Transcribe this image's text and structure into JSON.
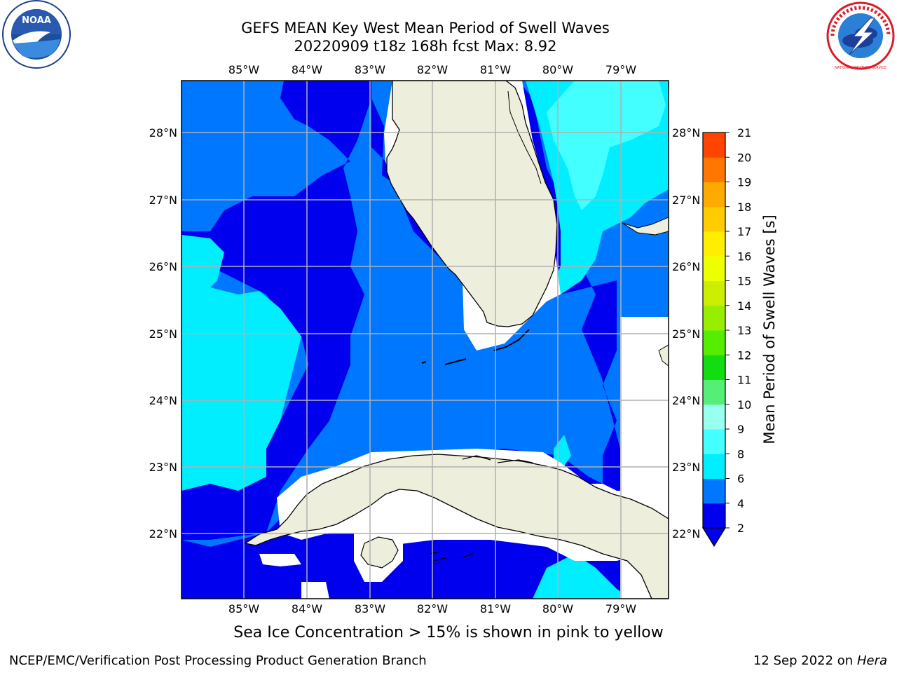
{
  "header": {
    "title_line1": "GEFS MEAN Key West Mean Period of Swell Waves",
    "title_line2": "20220909 t18z 168h fcst   Max: 8.92"
  },
  "logos": {
    "noaa_text": "NOAA",
    "nws_text": "NATIONAL WEATHER SERVICE"
  },
  "map": {
    "lon_ticks": [
      "85°W",
      "84°W",
      "83°W",
      "82°W",
      "81°W",
      "80°W",
      "79°W"
    ],
    "lat_ticks": [
      "28°N",
      "27°N",
      "26°N",
      "25°N",
      "24°N",
      "23°N",
      "22°N"
    ],
    "colors": {
      "land": "#eeeedd",
      "no_data": "#ffffff",
      "band_2_4": "#0000ee",
      "band_4_6": "#0077ff",
      "band_6_8": "#00eeff",
      "band_8_9": "#44ffff",
      "grid": "#b0b0b0"
    }
  },
  "colorbar": {
    "label": "Mean Period of Swell Waves [s]",
    "ticks": [
      "2",
      "4",
      "6",
      "8",
      "9",
      "10",
      "11",
      "12",
      "13",
      "14",
      "15",
      "16",
      "17",
      "18",
      "19",
      "20",
      "21"
    ],
    "colors": [
      "#0000ee",
      "#0077ff",
      "#00eeff",
      "#44ffff",
      "#99ffee",
      "#55ee77",
      "#11dd11",
      "#55ee00",
      "#99ee00",
      "#ccee00",
      "#eeff00",
      "#ffee00",
      "#ffcc00",
      "#ffaa00",
      "#ff7700",
      "#ff4400",
      "#ff0000"
    ]
  },
  "notes": {
    "ice": "Sea Ice Concentration > 15% is shown in pink to yellow"
  },
  "footer": {
    "left": "NCEP/EMC/Verification Post Processing Product Generation Branch",
    "date": "12 Sep 2022 on",
    "machine": "Hera"
  }
}
